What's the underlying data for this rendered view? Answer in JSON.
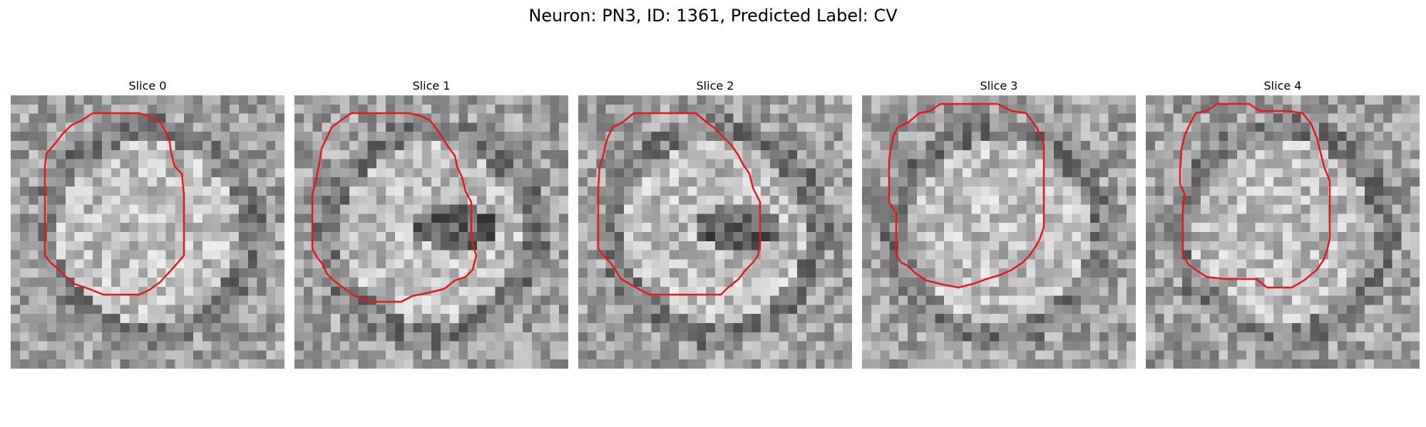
{
  "figure": {
    "title": "Neuron: PN3, ID: 1361, Predicted Label: CV"
  },
  "slices": [
    {
      "label": "Slice 0",
      "seed": 11,
      "dark_blob": false
    },
    {
      "label": "Slice 1",
      "seed": 23,
      "dark_blob": true
    },
    {
      "label": "Slice 2",
      "seed": 37,
      "dark_blob": true
    },
    {
      "label": "Slice 3",
      "seed": 51,
      "dark_blob": false
    },
    {
      "label": "Slice 4",
      "seed": 67,
      "dark_blob": false
    }
  ],
  "contour": {
    "color": "#e31a1c"
  }
}
